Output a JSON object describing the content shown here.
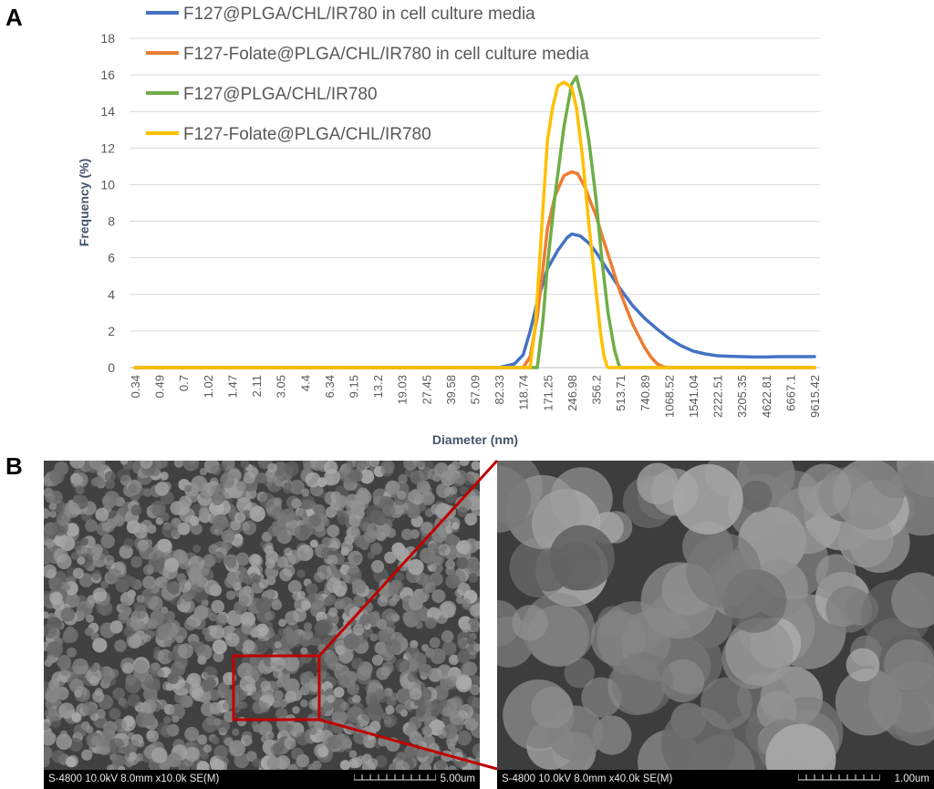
{
  "panels": {
    "a_label": "A",
    "b_label": "B"
  },
  "chart_data": {
    "type": "line",
    "title": "",
    "xlabel": "Diameter (nm)",
    "ylabel": "Frequency (%)",
    "ylim": [
      0,
      18
    ],
    "yticks": [
      0,
      2,
      4,
      6,
      8,
      10,
      12,
      14,
      16,
      18
    ],
    "grid": true,
    "legend_position": "top-left",
    "tick_labels": [
      "0.34",
      "0.49",
      "0.7",
      "1.02",
      "1.47",
      "2.11",
      "3.05",
      "4.4",
      "6.34",
      "9.15",
      "13.2",
      "19.03",
      "27.45",
      "39.58",
      "57.09",
      "82.33",
      "118.74",
      "171.25",
      "246.98",
      "356.2",
      "513.71",
      "740.89",
      "1068.52",
      "1541.04",
      "2222.51",
      "3205.35",
      "4622.81",
      "6667.1",
      "9615.42"
    ],
    "series": [
      {
        "name": "F127@PLGA/CHL/IR780 in cell culture media",
        "color": "#4472C4",
        "points": [
          [
            0.34,
            0
          ],
          [
            82.33,
            0
          ],
          [
            104,
            0.2
          ],
          [
            118.74,
            0.7
          ],
          [
            132,
            2.0
          ],
          [
            147,
            3.6
          ],
          [
            171.25,
            5.4
          ],
          [
            200,
            6.4
          ],
          [
            230,
            7.1
          ],
          [
            246.98,
            7.3
          ],
          [
            280,
            7.2
          ],
          [
            320,
            6.8
          ],
          [
            356.2,
            6.3
          ],
          [
            427,
            5.3
          ],
          [
            513.71,
            4.3
          ],
          [
            617,
            3.4
          ],
          [
            740.89,
            2.7
          ],
          [
            897,
            2.1
          ],
          [
            1068.52,
            1.6
          ],
          [
            1280,
            1.2
          ],
          [
            1541.04,
            0.9
          ],
          [
            1846,
            0.75
          ],
          [
            2222.51,
            0.65
          ],
          [
            2660,
            0.62
          ],
          [
            3205.35,
            0.6
          ],
          [
            3840,
            0.58
          ],
          [
            4622.81,
            0.58
          ],
          [
            5550,
            0.6
          ],
          [
            6667.1,
            0.6
          ],
          [
            8000,
            0.6
          ],
          [
            9615.42,
            0.6
          ]
        ]
      },
      {
        "name": "F127-Folate@PLGA/CHL/IR780 in cell culture media",
        "color": "#ED7D31",
        "points": [
          [
            0.34,
            0
          ],
          [
            118.74,
            0
          ],
          [
            132,
            0.6
          ],
          [
            147,
            2.8
          ],
          [
            160,
            5.4
          ],
          [
            171.25,
            7.6
          ],
          [
            192,
            9.4
          ],
          [
            220,
            10.5
          ],
          [
            246.98,
            10.7
          ],
          [
            270,
            10.6
          ],
          [
            300,
            9.9
          ],
          [
            330,
            9.0
          ],
          [
            356.2,
            8.3
          ],
          [
            390,
            7.2
          ],
          [
            427,
            6.2
          ],
          [
            470,
            5.1
          ],
          [
            513.71,
            4.1
          ],
          [
            566,
            3.2
          ],
          [
            617,
            2.4
          ],
          [
            680,
            1.7
          ],
          [
            740.89,
            1.1
          ],
          [
            820,
            0.55
          ],
          [
            897,
            0.2
          ],
          [
            980,
            0.05
          ],
          [
            1068.52,
            0
          ],
          [
            9615.42,
            0
          ]
        ]
      },
      {
        "name": "F127@PLGA/CHL/IR780",
        "color": "#70AD47",
        "points": [
          [
            0.34,
            0
          ],
          [
            147,
            0
          ],
          [
            160,
            2.6
          ],
          [
            171.25,
            5.6
          ],
          [
            192,
            9.4
          ],
          [
            220,
            13.2
          ],
          [
            246.98,
            15.5
          ],
          [
            265,
            15.9
          ],
          [
            290,
            14.6
          ],
          [
            320,
            12.4
          ],
          [
            356.2,
            9.2
          ],
          [
            390,
            5.8
          ],
          [
            427,
            3.0
          ],
          [
            470,
            1.0
          ],
          [
            500,
            0.2
          ],
          [
            513.71,
            0
          ],
          [
            9615.42,
            0
          ]
        ]
      },
      {
        "name": "F127-Folate@PLGA/CHL/IR780",
        "color": "#FFC000",
        "points": [
          [
            0.34,
            0
          ],
          [
            132,
            0
          ],
          [
            143,
            2.4
          ],
          [
            152,
            5.8
          ],
          [
            162,
            9.4
          ],
          [
            171.25,
            12.4
          ],
          [
            185,
            14.2
          ],
          [
            200,
            15.4
          ],
          [
            220,
            15.6
          ],
          [
            246.98,
            15.3
          ],
          [
            265,
            14.2
          ],
          [
            290,
            11.6
          ],
          [
            320,
            7.8
          ],
          [
            356.2,
            4.2
          ],
          [
            380,
            2.0
          ],
          [
            400,
            0.7
          ],
          [
            420,
            0.1
          ],
          [
            427,
            0
          ],
          [
            9615.42,
            0
          ]
        ]
      }
    ]
  },
  "sem": [
    {
      "info": "S-4800 10.0kV 8.0mm x10.0k SE(M)",
      "scale": "5.00um",
      "base": "#414141"
    },
    {
      "info": "S-4800 10.0kV 8.0mm x40.0k SE(M)",
      "scale": "1.00um",
      "base": "#3d3d3d"
    }
  ],
  "zoom_color": "#C00000"
}
